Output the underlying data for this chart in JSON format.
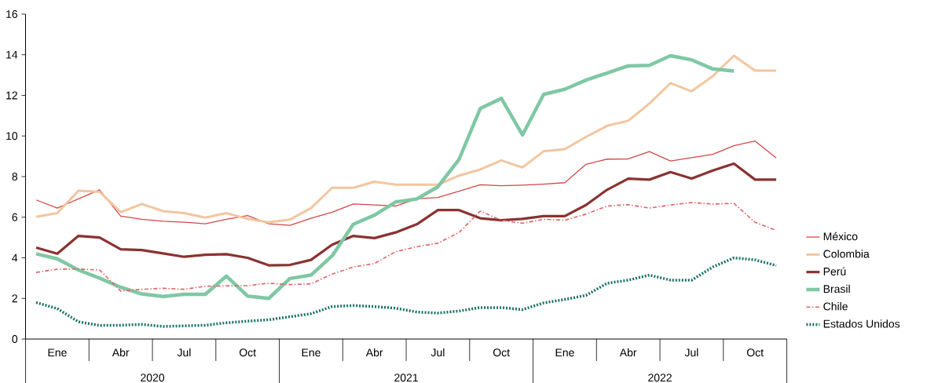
{
  "chart_data": {
    "type": "line",
    "categories": [
      null,
      "Ene",
      null,
      null,
      "Abr",
      null,
      null,
      "Jul",
      null,
      null,
      "Oct",
      null,
      null,
      "Ene",
      null,
      null,
      "Abr",
      null,
      null,
      "Jul",
      null,
      null,
      "Oct",
      null,
      null,
      "Ene",
      null,
      null,
      "Abr",
      null,
      null,
      "Jul",
      null,
      null,
      "Oct",
      null
    ],
    "series": [
      {
        "name": "México",
        "color": "#d24848",
        "line_style": "solid",
        "values": [
          6.85,
          6.45,
          6.9,
          7.35,
          6.05,
          5.9,
          5.8,
          5.75,
          5.68,
          5.9,
          6.08,
          5.68,
          5.6,
          5.95,
          6.25,
          6.65,
          6.6,
          6.55,
          6.9,
          6.97,
          7.28,
          7.6,
          7.55,
          7.58,
          7.63,
          7.7,
          8.6,
          8.86,
          8.87,
          9.23,
          8.77,
          8.93,
          9.1,
          9.52,
          9.75,
          8.92
        ]
      },
      {
        "name": "Colombia",
        "color": "#f2c6a0",
        "line_style": "solid",
        "values": [
          6.02,
          6.2,
          7.3,
          7.25,
          6.25,
          6.65,
          6.3,
          6.2,
          5.98,
          6.2,
          5.92,
          5.75,
          5.88,
          6.45,
          7.45,
          7.45,
          7.75,
          7.6,
          7.6,
          7.6,
          8.05,
          8.35,
          8.8,
          8.45,
          9.25,
          9.35,
          9.95,
          10.5,
          10.75,
          11.6,
          12.6,
          12.2,
          12.95,
          13.95,
          13.22,
          13.22
        ]
      },
      {
        "name": "Perú",
        "color": "#8b3232",
        "line_style": "solid",
        "values": [
          4.5,
          4.2,
          5.08,
          5.0,
          4.42,
          4.38,
          4.22,
          4.05,
          4.15,
          4.18,
          4.0,
          3.63,
          3.65,
          3.9,
          4.65,
          5.08,
          4.97,
          5.25,
          5.65,
          6.35,
          6.35,
          5.95,
          5.85,
          5.92,
          6.05,
          6.05,
          6.6,
          7.35,
          7.9,
          7.85,
          8.22,
          7.9,
          8.3,
          8.64,
          7.85,
          7.85
        ]
      },
      {
        "name": "Brasil",
        "color": "#7fc8a4",
        "line_style": "solid",
        "values": [
          4.2,
          3.95,
          3.4,
          3.0,
          2.55,
          2.22,
          2.1,
          2.2,
          2.2,
          3.1,
          2.12,
          2.0,
          2.98,
          3.15,
          4.1,
          5.65,
          6.1,
          6.75,
          6.9,
          7.5,
          8.85,
          11.35,
          11.85,
          10.05,
          12.05,
          12.3,
          12.75,
          13.1,
          13.45,
          13.48,
          13.95,
          13.75,
          13.3,
          13.2,
          null,
          null
        ]
      },
      {
        "name": "Chile",
        "color": "#e06464",
        "line_style": "dashed",
        "values": [
          3.28,
          3.44,
          3.45,
          3.4,
          2.36,
          2.45,
          2.5,
          2.45,
          2.6,
          2.62,
          2.63,
          2.75,
          2.68,
          2.72,
          3.2,
          3.55,
          3.72,
          4.3,
          4.55,
          4.72,
          5.25,
          6.3,
          5.85,
          5.7,
          5.9,
          5.85,
          6.15,
          6.55,
          6.62,
          6.45,
          6.6,
          6.72,
          6.65,
          6.68,
          5.75,
          5.35
        ]
      },
      {
        "name": "Estados Unidos",
        "color": "#1a7266",
        "line_style": "dotted",
        "values": [
          1.8,
          1.5,
          0.85,
          0.67,
          0.68,
          0.72,
          0.62,
          0.65,
          0.68,
          0.8,
          0.88,
          0.95,
          1.1,
          1.25,
          1.6,
          1.65,
          1.6,
          1.52,
          1.33,
          1.28,
          1.38,
          1.55,
          1.55,
          1.45,
          1.78,
          1.95,
          2.15,
          2.75,
          2.9,
          3.15,
          2.9,
          2.9,
          3.55,
          4.0,
          3.9,
          3.62
        ]
      }
    ],
    "ylim": [
      0,
      16
    ],
    "yticks": [
      0,
      2,
      4,
      6,
      8,
      10,
      12,
      14,
      16
    ],
    "annotations": [
      "2020",
      "2021",
      "2022"
    ],
    "legend": "right",
    "grid": false,
    "marker": "none"
  }
}
